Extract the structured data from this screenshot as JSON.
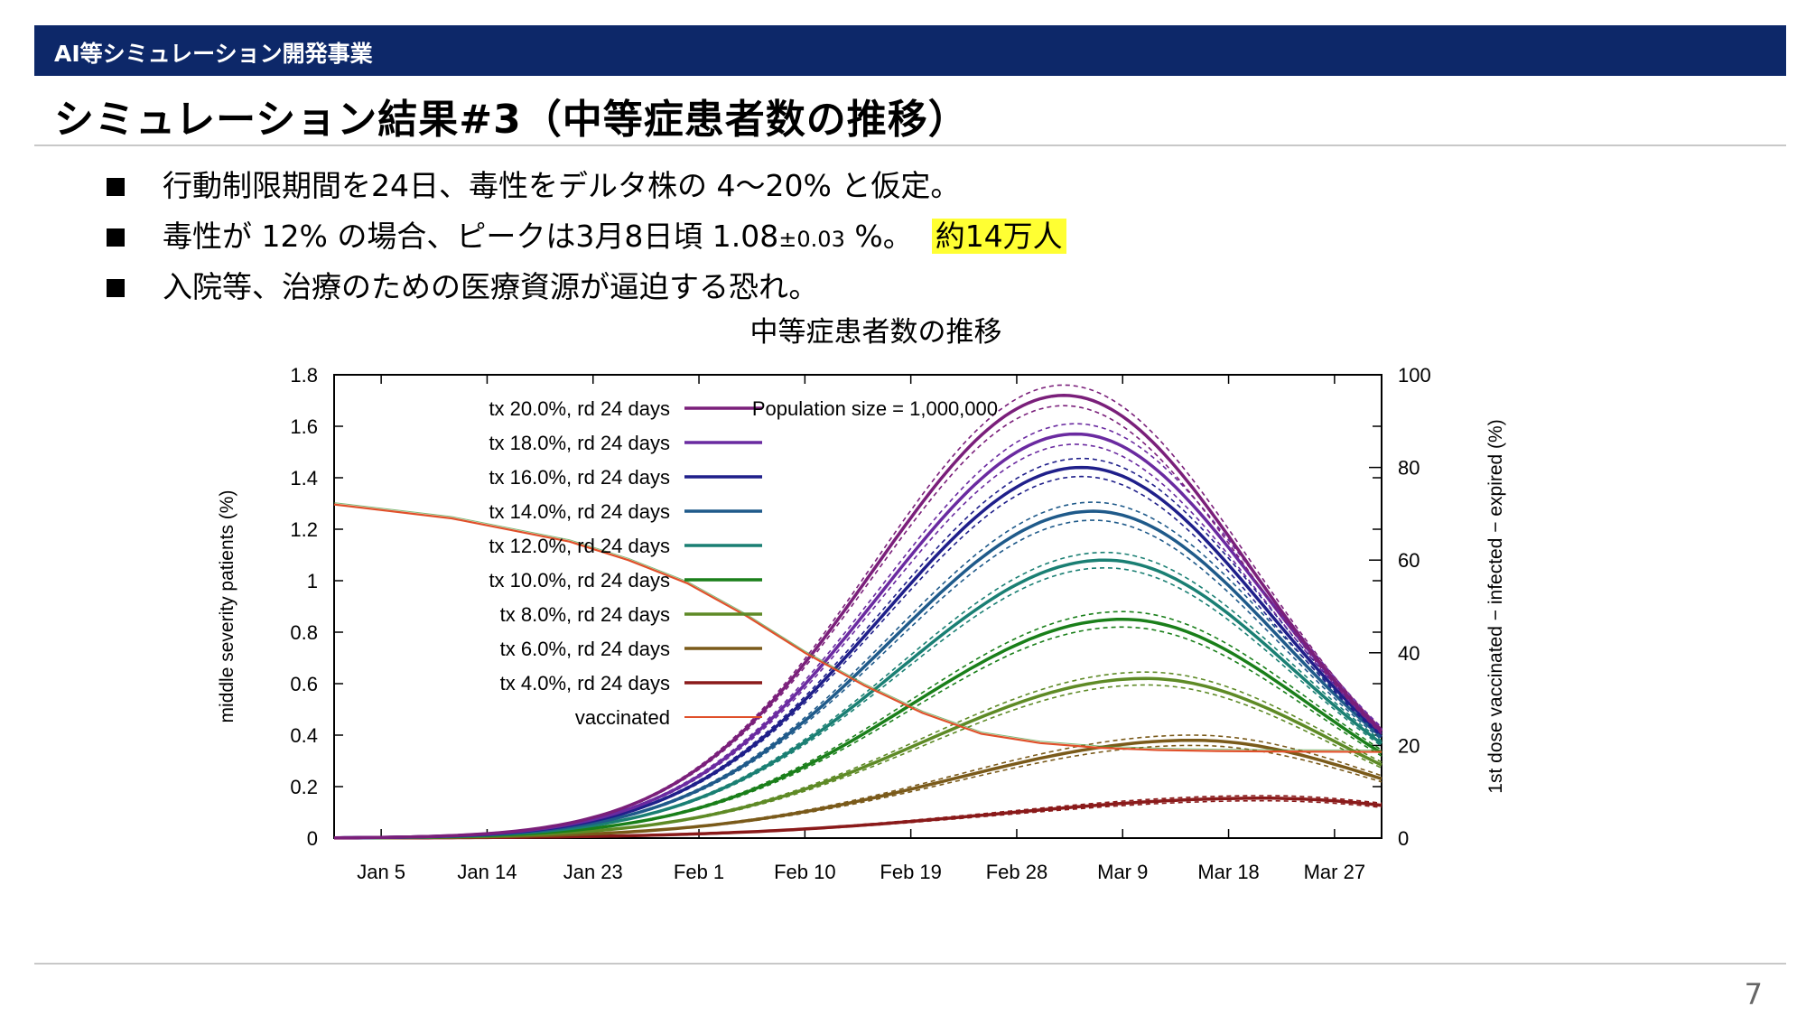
{
  "header": {
    "section": "AI等シミュレーション開発事業",
    "title": "シミュレーション結果#3（中等症患者数の推移）"
  },
  "bullets": {
    "b1": "行動制限期間を24日、毒性をデルタ株の 4〜20% と仮定。",
    "b2_pre": "毒性が 12% の場合、ピークは3月8日頃 1.08",
    "b2_pm": "±0.03",
    "b2_post": " %。",
    "b2_highlight": "約14万人",
    "b3": "入院等、治療のための医療資源が逼迫する恐れ。"
  },
  "page_number": "7",
  "chart_data": {
    "type": "line",
    "title": "中等症患者数の推移",
    "annotation": "Population size = 1,000,000",
    "xlabel": "",
    "ylabel": "middle severity patients (%)",
    "y2label": "1st dose vaccinated − infected − expired (%)",
    "x_tick_labels": [
      "Jan 5",
      "Jan 14",
      "Jan 23",
      "Feb 1",
      "Feb 10",
      "Feb 19",
      "Feb 28",
      "Mar 9",
      "Mar 18",
      "Mar 27"
    ],
    "x_tick_days": [
      4,
      13,
      22,
      31,
      40,
      49,
      58,
      67,
      76,
      85
    ],
    "xlim": [
      0,
      89
    ],
    "ylim": [
      0,
      1.8
    ],
    "y_ticks": [
      "0",
      "0.2",
      "0.4",
      "0.6",
      "0.8",
      "1",
      "1.2",
      "1.4",
      "1.6",
      "1.8"
    ],
    "y2lim": [
      0,
      100
    ],
    "y2_ticks": [
      "0",
      "20",
      "40",
      "60",
      "80",
      "100"
    ],
    "grid": false,
    "legend_position": "top-left",
    "series": [
      {
        "name": "tx 20.0%, rd 24 days",
        "color": "#7a1f7a",
        "peak": 1.72,
        "peak_day": 62,
        "band": 0.04
      },
      {
        "name": "tx 18.0%, rd 24 days",
        "color": "#6a2aa0",
        "peak": 1.57,
        "peak_day": 63,
        "band": 0.04
      },
      {
        "name": "tx 16.0%, rd 24 days",
        "color": "#1f1f8a",
        "peak": 1.44,
        "peak_day": 63.5,
        "band": 0.035
      },
      {
        "name": "tx 14.0%, rd 24 days",
        "color": "#1f5a8a",
        "peak": 1.27,
        "peak_day": 64.5,
        "band": 0.035
      },
      {
        "name": "tx 12.0%, rd 24 days",
        "color": "#1a7f73",
        "peak": 1.08,
        "peak_day": 65.5,
        "band": 0.03
      },
      {
        "name": "tx 10.0%, rd 24 days",
        "color": "#1a7f1a",
        "peak": 0.85,
        "peak_day": 67,
        "band": 0.03
      },
      {
        "name": "tx 8.0%, rd 24 days",
        "color": "#5e8a26",
        "peak": 0.62,
        "peak_day": 69,
        "band": 0.025
      },
      {
        "name": "tx 6.0%, rd 24 days",
        "color": "#7a5a1a",
        "peak": 0.38,
        "peak_day": 73,
        "band": 0.02
      },
      {
        "name": "tx 4.0%, rd 24 days",
        "color": "#8a1a1a",
        "peak": 0.155,
        "peak_day": 79,
        "band": 0.01
      }
    ],
    "vaccinated": {
      "name": "vaccinated",
      "color": "#e0502a",
      "axis": "y2",
      "x": [
        0,
        10,
        20,
        25,
        30,
        35,
        40,
        45,
        50,
        55,
        60,
        65,
        70,
        75,
        80,
        89
      ],
      "values": [
        72,
        69,
        64,
        60,
        55,
        48,
        40,
        33,
        27,
        22.5,
        20.5,
        19.5,
        19,
        18.8,
        18.7,
        18.6
      ]
    }
  }
}
